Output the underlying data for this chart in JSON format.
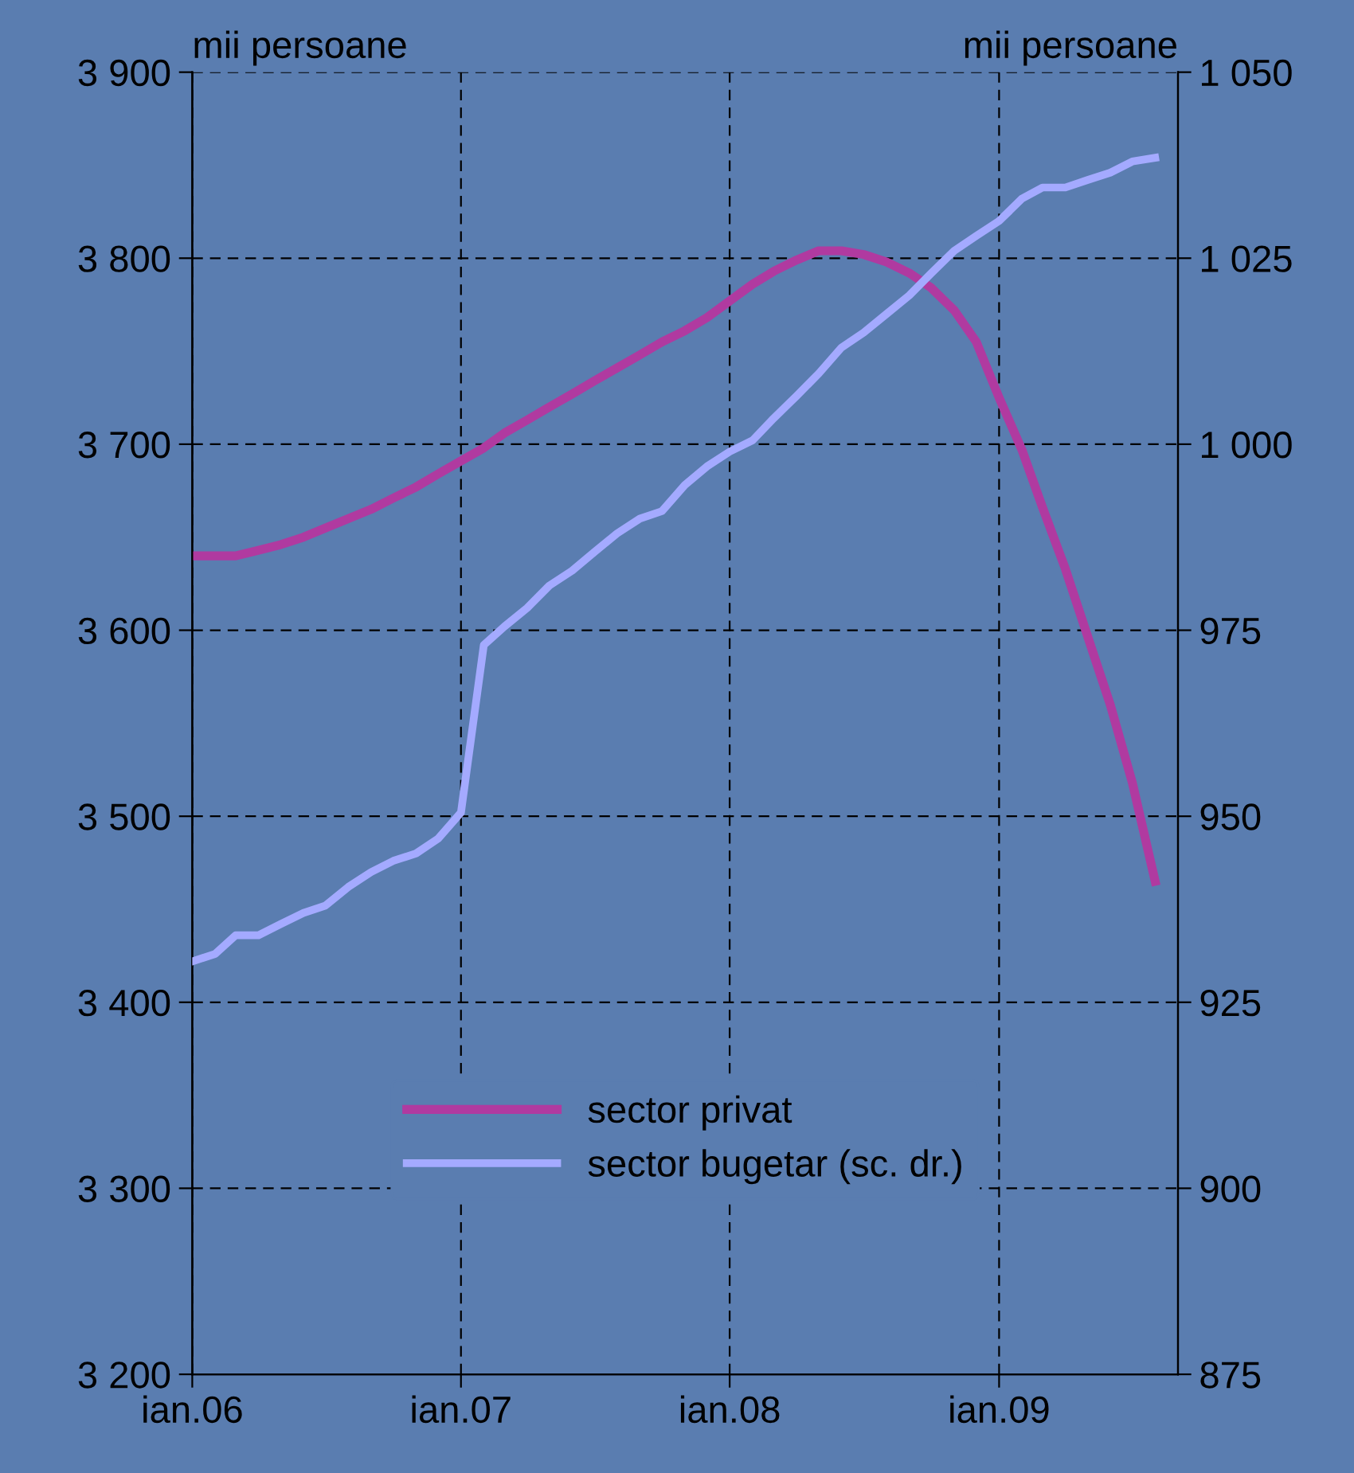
{
  "chart_data": {
    "type": "line",
    "ylabel": "mii persoane",
    "y2label": "mii persoane",
    "x": [
      "2006-01",
      "2006-02",
      "2006-03",
      "2006-04",
      "2006-05",
      "2006-06",
      "2006-07",
      "2006-08",
      "2006-09",
      "2006-10",
      "2006-11",
      "2006-12",
      "2007-01",
      "2007-02",
      "2007-03",
      "2007-04",
      "2007-05",
      "2007-06",
      "2007-07",
      "2007-08",
      "2007-09",
      "2007-10",
      "2007-11",
      "2007-12",
      "2008-01",
      "2008-02",
      "2008-03",
      "2008-04",
      "2008-05",
      "2008-06",
      "2008-07",
      "2008-08",
      "2008-09",
      "2008-10",
      "2008-11",
      "2008-12",
      "2009-01",
      "2009-02",
      "2009-03",
      "2009-04",
      "2009-05",
      "2009-06",
      "2009-07",
      "2009-08"
    ],
    "series": [
      {
        "name": "sector privat",
        "color": "#b03aa0",
        "values": [
          3640,
          3640,
          3640,
          3643,
          3646,
          3650,
          3655,
          3660,
          3665,
          3671,
          3677,
          3684,
          3691,
          3698,
          3706,
          3713,
          3720,
          3727,
          3734,
          3741,
          3748,
          3755,
          3761,
          3768,
          3777,
          3786,
          3793,
          3799,
          3804,
          3804,
          3802,
          3798,
          3792,
          3784,
          3772,
          3755,
          3725,
          3697,
          3666,
          3633,
          3597,
          3560,
          3518,
          3465
        ]
      },
      {
        "name": "sector bugetar (sc. dr.)",
        "color": "#a4aaff",
        "axis": "y2",
        "values": [
          930.5,
          931.5,
          934,
          934,
          935.5,
          937,
          938,
          940.5,
          942.5,
          944,
          945,
          947,
          950.5,
          973,
          975.5,
          978,
          981,
          983,
          985.5,
          988,
          990,
          991,
          994.5,
          997,
          999,
          1000.5,
          1003.5,
          1006.5,
          1009.5,
          1013,
          1015,
          1017.5,
          1020,
          1023,
          1026,
          1028,
          1030,
          1033,
          1034.5,
          1034.5,
          1035.5,
          1036.5,
          1038,
          1038.5
        ]
      }
    ],
    "xlim": [
      "2006-01",
      "2009-09"
    ],
    "xticks": [
      {
        "value": "2006-01",
        "label": "ian.06"
      },
      {
        "value": "2007-01",
        "label": "ian.07"
      },
      {
        "value": "2008-01",
        "label": "ian.08"
      },
      {
        "value": "2009-01",
        "label": "ian.09"
      }
    ],
    "ylim": [
      3200,
      3900
    ],
    "yticks": [
      {
        "value": 3200,
        "label": "3 200"
      },
      {
        "value": 3300,
        "label": "3 300"
      },
      {
        "value": 3400,
        "label": "3 400"
      },
      {
        "value": 3500,
        "label": "3 500"
      },
      {
        "value": 3600,
        "label": "3 600"
      },
      {
        "value": 3700,
        "label": "3 700"
      },
      {
        "value": 3800,
        "label": "3 800"
      },
      {
        "value": 3900,
        "label": "3 900"
      }
    ],
    "y2lim": [
      875,
      1050
    ],
    "y2ticks": [
      875,
      900,
      925,
      950,
      975,
      {
        "value": 1000,
        "label": "1 000"
      },
      {
        "value": 1025,
        "label": "1 025"
      },
      {
        "value": 1050,
        "label": "1 050"
      }
    ],
    "grid": true,
    "legend": "bottom",
    "marker": "none",
    "line_style": "solid"
  }
}
